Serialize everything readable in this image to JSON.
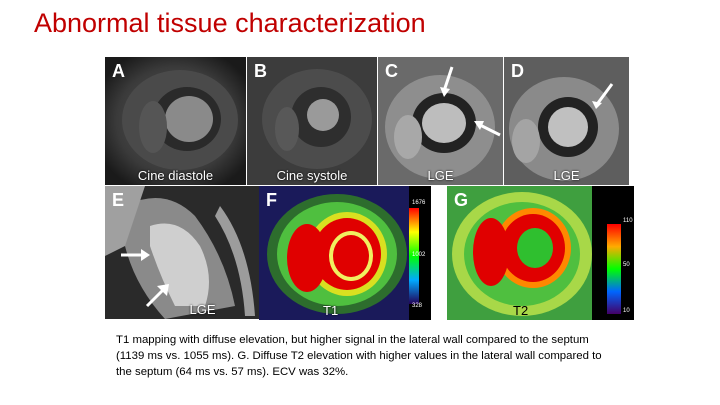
{
  "title": "Abnormal tissue characterization",
  "panels": {
    "a": {
      "letter": "A",
      "caption": "Cine diastole"
    },
    "b": {
      "letter": "B",
      "caption": "Cine systole"
    },
    "c": {
      "letter": "C",
      "caption": "LGE"
    },
    "d": {
      "letter": "D",
      "caption": "LGE"
    },
    "e": {
      "letter": "E",
      "caption": "LGE"
    },
    "f": {
      "letter": "F",
      "caption": "T1",
      "scale_max": "1676",
      "scale_mid": "1002",
      "scale_min": "328"
    },
    "g": {
      "letter": "G",
      "caption": "T2",
      "scale_max": "110",
      "scale_mid": "50",
      "scale_min": "10"
    }
  },
  "caption": "T1 mapping with diffuse elevation, but higher signal in the lateral wall  compared to the septum (1139 ms vs. 1055 ms).  G. Diffuse T2 elevation with higher values in the lateral wall compared to the septum (64 ms vs. 57 ms). ECV was 32%.",
  "colors": {
    "title": "#c00000",
    "map_high": "#e00000",
    "map_mid": "#3fbf3f"
  }
}
